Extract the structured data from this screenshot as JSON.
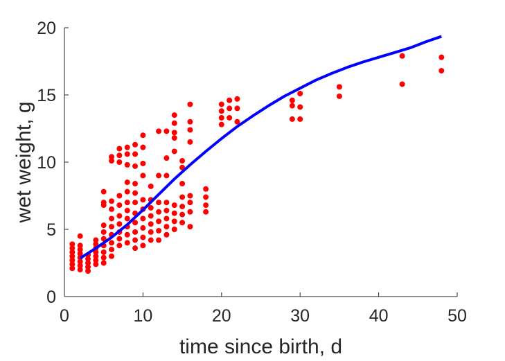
{
  "chart_data": {
    "type": "scatter",
    "title": "",
    "xlabel": "time since birth, d",
    "ylabel": "wet weight, g",
    "xlim": [
      0,
      50
    ],
    "ylim": [
      0,
      20
    ],
    "xticks": [
      0,
      10,
      20,
      30,
      40,
      50
    ],
    "yticks": [
      0,
      5,
      10,
      15,
      20
    ],
    "grid": false,
    "colors": {
      "points": "#ff0000",
      "curve": "#0000ff",
      "axis": "#262626"
    },
    "series": [
      {
        "kind": "points",
        "points": [
          [
            1,
            2.1
          ],
          [
            1,
            2.4
          ],
          [
            1,
            2.7
          ],
          [
            1,
            3.0
          ],
          [
            1,
            3.3
          ],
          [
            1,
            3.6
          ],
          [
            1,
            3.9
          ],
          [
            2,
            2.0
          ],
          [
            2,
            2.3
          ],
          [
            2,
            2.6
          ],
          [
            2,
            2.9
          ],
          [
            2,
            3.2
          ],
          [
            2,
            3.5
          ],
          [
            2,
            3.8
          ],
          [
            2,
            4.5
          ],
          [
            3,
            1.9
          ],
          [
            3,
            2.2
          ],
          [
            3,
            2.5
          ],
          [
            3,
            2.8
          ],
          [
            3,
            3.1
          ],
          [
            4,
            2.4
          ],
          [
            4,
            2.7
          ],
          [
            4,
            3.0
          ],
          [
            4,
            3.3
          ],
          [
            4,
            3.6
          ],
          [
            4,
            3.9
          ],
          [
            4,
            4.2
          ],
          [
            5,
            2.5
          ],
          [
            5,
            2.9
          ],
          [
            5,
            3.3
          ],
          [
            5,
            3.8
          ],
          [
            5,
            4.3
          ],
          [
            5,
            4.8
          ],
          [
            5,
            5.3
          ],
          [
            5,
            6.8
          ],
          [
            5,
            7.0
          ],
          [
            5,
            7.8
          ],
          [
            6,
            3.0
          ],
          [
            6,
            3.5
          ],
          [
            6,
            4.0
          ],
          [
            6,
            4.6
          ],
          [
            6,
            5.2
          ],
          [
            6,
            5.8
          ],
          [
            6,
            6.5
          ],
          [
            6,
            7.1
          ],
          [
            6,
            10.1
          ],
          [
            6,
            10.4
          ],
          [
            7,
            3.8
          ],
          [
            7,
            4.3
          ],
          [
            7,
            4.8
          ],
          [
            7,
            5.4
          ],
          [
            7,
            6.0
          ],
          [
            7,
            6.8
          ],
          [
            7,
            7.5
          ],
          [
            7,
            10.0
          ],
          [
            7,
            10.5
          ],
          [
            7,
            11.0
          ],
          [
            8,
            4.0
          ],
          [
            8,
            4.6
          ],
          [
            8,
            5.2
          ],
          [
            8,
            5.8
          ],
          [
            8,
            6.4
          ],
          [
            8,
            7.0
          ],
          [
            8,
            7.8
          ],
          [
            8,
            8.5
          ],
          [
            8,
            9.8
          ],
          [
            8,
            10.6
          ],
          [
            8,
            11.1
          ],
          [
            9,
            3.6
          ],
          [
            9,
            4.2
          ],
          [
            9,
            4.8
          ],
          [
            9,
            5.5
          ],
          [
            9,
            6.2
          ],
          [
            9,
            7.0
          ],
          [
            9,
            7.7
          ],
          [
            9,
            8.4
          ],
          [
            9,
            9.7
          ],
          [
            9,
            10.6
          ],
          [
            9,
            11.3
          ],
          [
            10,
            3.8
          ],
          [
            10,
            4.4
          ],
          [
            10,
            5.1
          ],
          [
            10,
            5.8
          ],
          [
            10,
            6.5
          ],
          [
            10,
            7.2
          ],
          [
            10,
            9.0
          ],
          [
            10,
            9.9
          ],
          [
            10,
            11.1
          ],
          [
            10,
            12.0
          ],
          [
            11,
            4.2
          ],
          [
            11,
            4.8
          ],
          [
            11,
            5.4
          ],
          [
            11,
            6.0
          ],
          [
            11,
            6.6
          ],
          [
            11,
            7.2
          ],
          [
            11,
            8.2
          ],
          [
            12,
            4.2
          ],
          [
            12,
            4.9
          ],
          [
            12,
            5.6
          ],
          [
            12,
            6.3
          ],
          [
            12,
            7.0
          ],
          [
            12,
            9.0
          ],
          [
            12,
            12.3
          ],
          [
            13,
            4.6
          ],
          [
            13,
            5.2
          ],
          [
            13,
            5.8
          ],
          [
            13,
            6.4
          ],
          [
            13,
            7.0
          ],
          [
            13,
            9.0
          ],
          [
            13,
            10.3
          ],
          [
            13,
            12.3
          ],
          [
            14,
            5.0
          ],
          [
            14,
            5.6
          ],
          [
            14,
            6.2
          ],
          [
            14,
            6.8
          ],
          [
            14,
            10.8
          ],
          [
            14,
            11.8
          ],
          [
            14,
            12.2
          ],
          [
            14,
            12.9
          ],
          [
            14,
            13.5
          ],
          [
            15,
            5.5
          ],
          [
            15,
            6.1
          ],
          [
            15,
            6.7
          ],
          [
            15,
            7.4
          ],
          [
            15,
            8.4
          ],
          [
            15,
            9.6
          ],
          [
            15,
            10.1
          ],
          [
            16,
            5.2
          ],
          [
            16,
            6.3
          ],
          [
            16,
            7.0
          ],
          [
            16,
            7.5
          ],
          [
            16,
            11.5
          ],
          [
            16,
            12.4
          ],
          [
            16,
            13.0
          ],
          [
            16,
            14.3
          ],
          [
            18,
            6.3
          ],
          [
            18,
            6.8
          ],
          [
            18,
            7.4
          ],
          [
            18,
            8.0
          ],
          [
            20,
            12.8
          ],
          [
            20,
            13.3
          ],
          [
            20,
            13.8
          ],
          [
            20,
            14.3
          ],
          [
            21,
            13.3
          ],
          [
            21,
            14.0
          ],
          [
            21,
            14.6
          ],
          [
            22,
            13.0
          ],
          [
            22,
            14.0
          ],
          [
            22,
            14.7
          ],
          [
            29,
            13.2
          ],
          [
            29,
            14.2
          ],
          [
            29,
            14.6
          ],
          [
            30,
            13.2
          ],
          [
            30,
            14.1
          ],
          [
            30,
            15.1
          ],
          [
            35,
            14.9
          ],
          [
            35,
            15.6
          ],
          [
            43,
            15.8
          ],
          [
            43,
            17.9
          ],
          [
            48,
            16.8
          ],
          [
            48,
            17.8
          ]
        ]
      },
      {
        "kind": "line",
        "points": [
          [
            2,
            2.85
          ],
          [
            4,
            3.6
          ],
          [
            6,
            4.4
          ],
          [
            8,
            5.35
          ],
          [
            10,
            6.45
          ],
          [
            12,
            7.6
          ],
          [
            14,
            8.75
          ],
          [
            16,
            9.8
          ],
          [
            18,
            10.8
          ],
          [
            20,
            11.75
          ],
          [
            22,
            12.65
          ],
          [
            24,
            13.45
          ],
          [
            26,
            14.2
          ],
          [
            28,
            14.9
          ],
          [
            30,
            15.5
          ],
          [
            32,
            16.1
          ],
          [
            34,
            16.6
          ],
          [
            36,
            17.05
          ],
          [
            38,
            17.45
          ],
          [
            40,
            17.8
          ],
          [
            42,
            18.15
          ],
          [
            44,
            18.5
          ],
          [
            46,
            18.95
          ],
          [
            48,
            19.35
          ]
        ]
      }
    ]
  }
}
